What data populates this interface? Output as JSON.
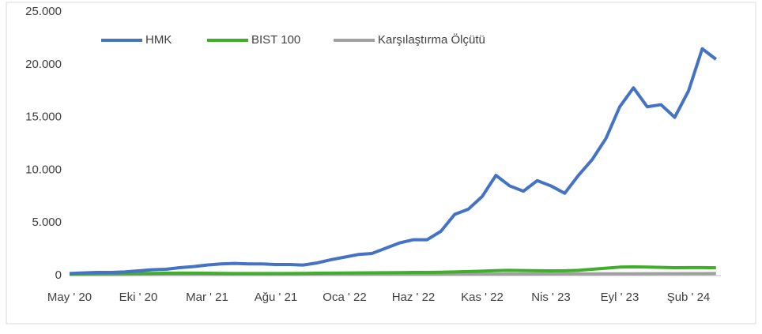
{
  "chart_data": {
    "type": "line",
    "categories": [
      "May ' 20",
      null,
      null,
      null,
      null,
      "Eki ' 20",
      null,
      null,
      null,
      null,
      "Mar ' 21",
      null,
      null,
      null,
      null,
      "Ağu ' 21",
      null,
      null,
      null,
      null,
      "Oca ' 22",
      null,
      null,
      null,
      null,
      "Haz ' 22",
      null,
      null,
      null,
      null,
      "Kas ' 22",
      null,
      null,
      null,
      null,
      "Nis ' 23",
      null,
      null,
      null,
      null,
      "Eyl ' 23",
      null,
      null,
      null,
      null,
      "Şub ' 24",
      null,
      null
    ],
    "series": [
      {
        "name": "HMK",
        "color": "#4472c4",
        "values": [
          200,
          250,
          300,
          300,
          350,
          450,
          550,
          600,
          750,
          850,
          1000,
          1100,
          1150,
          1100,
          1100,
          1050,
          1050,
          1000,
          1200,
          1500,
          1750,
          2000,
          2100,
          2600,
          3100,
          3400,
          3400,
          4200,
          5800,
          6300,
          7500,
          9500,
          8500,
          8000,
          9000,
          8500,
          7800,
          9500,
          11000,
          13000,
          16000,
          17800,
          16000,
          16200,
          15000,
          17500,
          21500,
          20500
        ]
      },
      {
        "name": "BIST 100",
        "color": "#3fae2a",
        "values": [
          150,
          170,
          180,
          190,
          200,
          200,
          210,
          220,
          230,
          230,
          220,
          210,
          200,
          200,
          200,
          200,
          200,
          210,
          220,
          230,
          240,
          250,
          260,
          270,
          280,
          300,
          300,
          320,
          350,
          380,
          420,
          470,
          500,
          480,
          460,
          450,
          460,
          500,
          600,
          700,
          800,
          820,
          800,
          780,
          750,
          760,
          760,
          740
        ]
      },
      {
        "name": "Karşılaştırma Ölçütü",
        "color": "#a0a0a0",
        "values": [
          100,
          100,
          100,
          100,
          100,
          110,
          110,
          110,
          110,
          110,
          110,
          110,
          110,
          110,
          110,
          110,
          120,
          120,
          120,
          120,
          120,
          120,
          130,
          130,
          130,
          130,
          130,
          130,
          140,
          140,
          140,
          140,
          150,
          150,
          150,
          150,
          160,
          160,
          160,
          170,
          170,
          170,
          180,
          180,
          180,
          190,
          190,
          200
        ]
      }
    ],
    "ylim": [
      0,
      25000
    ],
    "yticks": [
      0,
      {
        "value": 5000,
        "label": "5.000"
      },
      {
        "value": 10000,
        "label": "10.000"
      },
      {
        "value": 15000,
        "label": "15.000"
      },
      {
        "value": 20000,
        "label": "20.000"
      },
      {
        "value": 25000,
        "label": "25.000"
      }
    ],
    "grid": false,
    "legend": "top"
  }
}
